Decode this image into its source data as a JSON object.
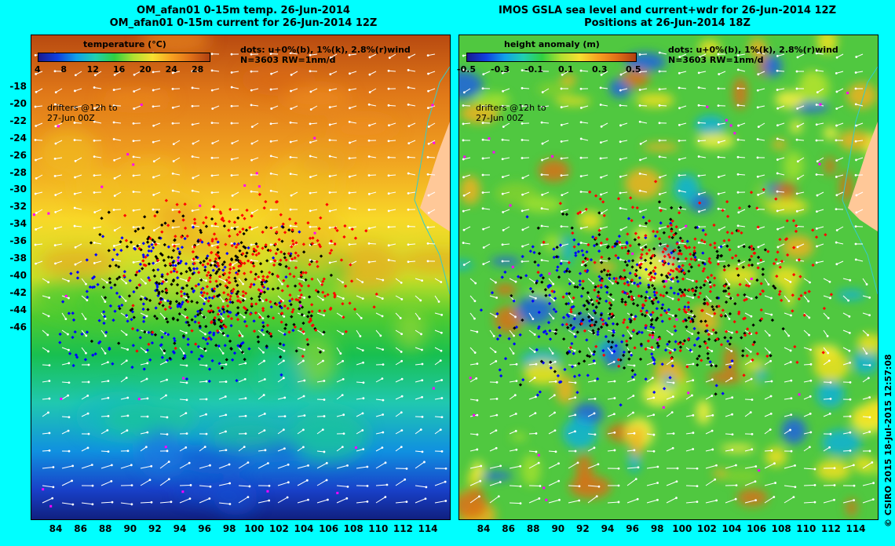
{
  "left_panel": {
    "title_line1": "OM_afan01 0-15m temp. 26-Jun-2014",
    "title_line2": "OM_afan01 0-15m current for 26-Jun-2014 12Z",
    "colorbar_title": "temperature (°C)",
    "colorbar_ticks": [
      "4",
      "8",
      "12",
      "16",
      "20",
      "24",
      "28"
    ],
    "dots_line1": "dots: u+0%(b), 1%(k), 2.8%(r)wind",
    "dots_line2": "N=3603 RW=1nm/d",
    "drifters_line1": "drifters @12h to",
    "drifters_line2": "27-Jun 00Z"
  },
  "right_panel": {
    "title_line1": "IMOS GSLA sea level and current+wdr for 26-Jun-2014 12Z",
    "title_line2": "Positions at 26-Jun-2014 18Z",
    "colorbar_title": "height anomaly (m)",
    "colorbar_ticks": [
      "-0.5",
      "-0.3",
      "-0.1",
      "0.1",
      "0.3",
      "0.5"
    ],
    "dots_line1": "dots: u+0%(b), 1%(k), 2.8%(r)wind",
    "dots_line2": "N=3603 RW=1nm/d",
    "drifters_line1": "drifters @12h to",
    "drifters_line2": "27-Jun 00Z"
  },
  "axes": {
    "lat_ticks": [
      "-18",
      "-20",
      "-22",
      "-24",
      "-26",
      "-28",
      "-30",
      "-32",
      "-34",
      "-36",
      "-38",
      "-40",
      "-42",
      "-44",
      "-46"
    ],
    "lon_ticks_left": [
      "84",
      "86",
      "88",
      "90",
      "92",
      "94",
      "96",
      "98",
      "100",
      "102",
      "104",
      "106",
      "108",
      "110",
      "112",
      "114"
    ],
    "lon_ticks_right": [
      "84",
      "86",
      "88",
      "90",
      "92",
      "94",
      "96",
      "98",
      "100",
      "102",
      "104",
      "106",
      "108",
      "110",
      "112",
      "114"
    ]
  },
  "copyright": "© CSIRO 2015   18-Jul-2015 12:57:08",
  "colors": {
    "background": "#00ffff",
    "dots_blue": "#0000ff",
    "dots_black": "#000000",
    "dots_red": "#ff0000",
    "drifters": "#ff00ff",
    "land": "#ffc898",
    "coast": "#33cccc"
  }
}
